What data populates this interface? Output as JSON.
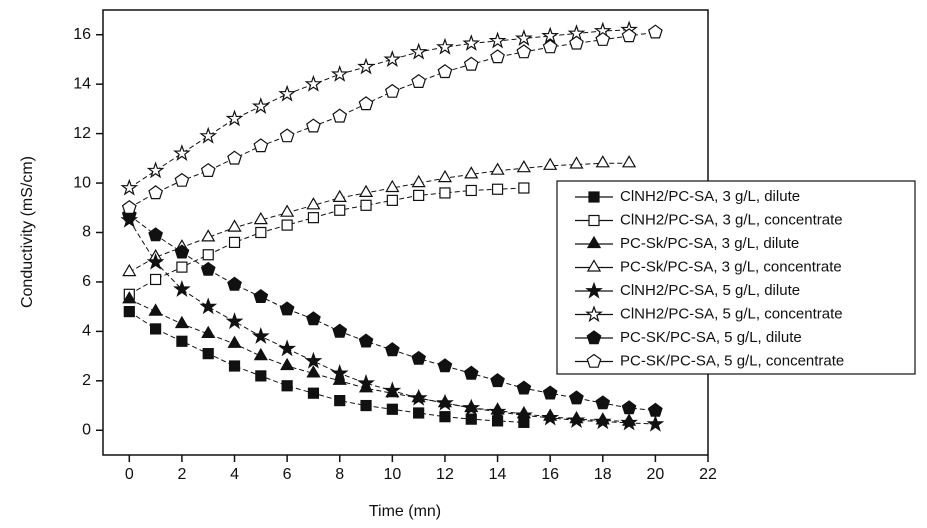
{
  "chart_data": {
    "type": "line",
    "x_label": "Time (mn)",
    "y_label": "Conductivity (mS/cm)",
    "xlim": [
      -1,
      22
    ],
    "xticks": [
      0,
      2,
      4,
      6,
      8,
      10,
      12,
      14,
      16,
      18,
      20,
      22
    ],
    "ylim": [
      -1,
      17
    ],
    "yticks": [
      0,
      2,
      4,
      6,
      8,
      10,
      12,
      14,
      16
    ],
    "legend": "right",
    "line_style": "dashed",
    "series": [
      {
        "name": "ClNH2/PC-SA, 3 g/L, dilute",
        "color": "#111111",
        "marker": "square",
        "filled": true,
        "x": [
          0,
          1,
          2,
          3,
          4,
          5,
          6,
          7,
          8,
          9,
          10,
          11,
          12,
          13,
          14,
          15
        ],
        "values": [
          4.8,
          4.1,
          3.6,
          3.1,
          2.6,
          2.2,
          1.8,
          1.5,
          1.2,
          1.0,
          0.85,
          0.7,
          0.55,
          0.45,
          0.38,
          0.32
        ]
      },
      {
        "name": "ClNH2/PC-SA, 3 g/L, concentrate",
        "color": "#111111",
        "marker": "square",
        "filled": false,
        "x": [
          0,
          1,
          2,
          3,
          4,
          5,
          6,
          7,
          8,
          9,
          10,
          11,
          12,
          13,
          14,
          15
        ],
        "values": [
          5.5,
          6.1,
          6.6,
          7.1,
          7.6,
          8.0,
          8.3,
          8.6,
          8.9,
          9.1,
          9.3,
          9.5,
          9.6,
          9.7,
          9.75,
          9.8
        ]
      },
      {
        "name": "PC-Sk/PC-SA, 3 g/L, dilute",
        "color": "#111111",
        "marker": "triangle",
        "filled": true,
        "x": [
          0,
          1,
          2,
          3,
          4,
          5,
          6,
          7,
          8,
          9,
          10,
          11,
          12,
          13,
          14,
          15,
          16,
          17,
          18,
          19
        ],
        "values": [
          5.3,
          4.8,
          4.3,
          3.9,
          3.5,
          3.0,
          2.6,
          2.3,
          2.0,
          1.7,
          1.5,
          1.3,
          1.1,
          0.9,
          0.8,
          0.65,
          0.55,
          0.45,
          0.4,
          0.35
        ]
      },
      {
        "name": "PC-Sk/PC-SA, 3 g/L, concentrate",
        "color": "#111111",
        "marker": "triangle",
        "filled": false,
        "x": [
          0,
          1,
          2,
          3,
          4,
          5,
          6,
          7,
          8,
          9,
          10,
          11,
          12,
          13,
          14,
          15,
          16,
          17,
          18,
          19
        ],
        "values": [
          6.4,
          7.0,
          7.4,
          7.8,
          8.2,
          8.5,
          8.8,
          9.1,
          9.4,
          9.6,
          9.8,
          10.0,
          10.2,
          10.35,
          10.5,
          10.6,
          10.7,
          10.75,
          10.8,
          10.8
        ]
      },
      {
        "name": "ClNH2/PC-SA, 5 g/L, dilute",
        "color": "#111111",
        "marker": "star",
        "filled": true,
        "x": [
          0,
          1,
          2,
          3,
          4,
          5,
          6,
          7,
          8,
          9,
          10,
          11,
          12,
          13,
          14,
          15,
          16,
          17,
          18,
          19,
          20
        ],
        "values": [
          8.5,
          6.8,
          5.7,
          5.0,
          4.4,
          3.8,
          3.3,
          2.8,
          2.3,
          1.9,
          1.6,
          1.3,
          1.1,
          0.9,
          0.75,
          0.6,
          0.5,
          0.4,
          0.35,
          0.3,
          0.25
        ]
      },
      {
        "name": "ClNH2/PC-SA, 5 g/L, concentrate",
        "color": "#111111",
        "marker": "star",
        "filled": false,
        "x": [
          0,
          1,
          2,
          3,
          4,
          5,
          6,
          7,
          8,
          9,
          10,
          11,
          12,
          13,
          14,
          15,
          16,
          17,
          18,
          19
        ],
        "values": [
          9.8,
          10.5,
          11.2,
          11.9,
          12.6,
          13.1,
          13.6,
          14.0,
          14.4,
          14.7,
          15.0,
          15.3,
          15.5,
          15.65,
          15.75,
          15.85,
          15.95,
          16.05,
          16.15,
          16.2
        ]
      },
      {
        "name": "PC-SK/PC-SA, 5 g/L, dilute",
        "color": "#111111",
        "marker": "pentagon",
        "filled": true,
        "x": [
          0,
          1,
          2,
          3,
          4,
          5,
          6,
          7,
          8,
          9,
          10,
          11,
          12,
          13,
          14,
          15,
          16,
          17,
          18,
          19,
          20
        ],
        "values": [
          8.7,
          7.9,
          7.2,
          6.5,
          5.9,
          5.4,
          4.9,
          4.5,
          4.0,
          3.6,
          3.25,
          2.9,
          2.6,
          2.3,
          2.0,
          1.7,
          1.5,
          1.3,
          1.1,
          0.9,
          0.8
        ]
      },
      {
        "name": "PC-SK/PC-SA, 5 g/L, concentrate",
        "color": "#111111",
        "marker": "pentagon",
        "filled": false,
        "x": [
          0,
          1,
          2,
          3,
          4,
          5,
          6,
          7,
          8,
          9,
          10,
          11,
          12,
          13,
          14,
          15,
          16,
          17,
          18,
          19,
          20
        ],
        "values": [
          9.0,
          9.6,
          10.1,
          10.5,
          11.0,
          11.5,
          11.9,
          12.3,
          12.7,
          13.2,
          13.7,
          14.1,
          14.5,
          14.8,
          15.1,
          15.3,
          15.5,
          15.65,
          15.8,
          15.95,
          16.1
        ]
      }
    ]
  }
}
